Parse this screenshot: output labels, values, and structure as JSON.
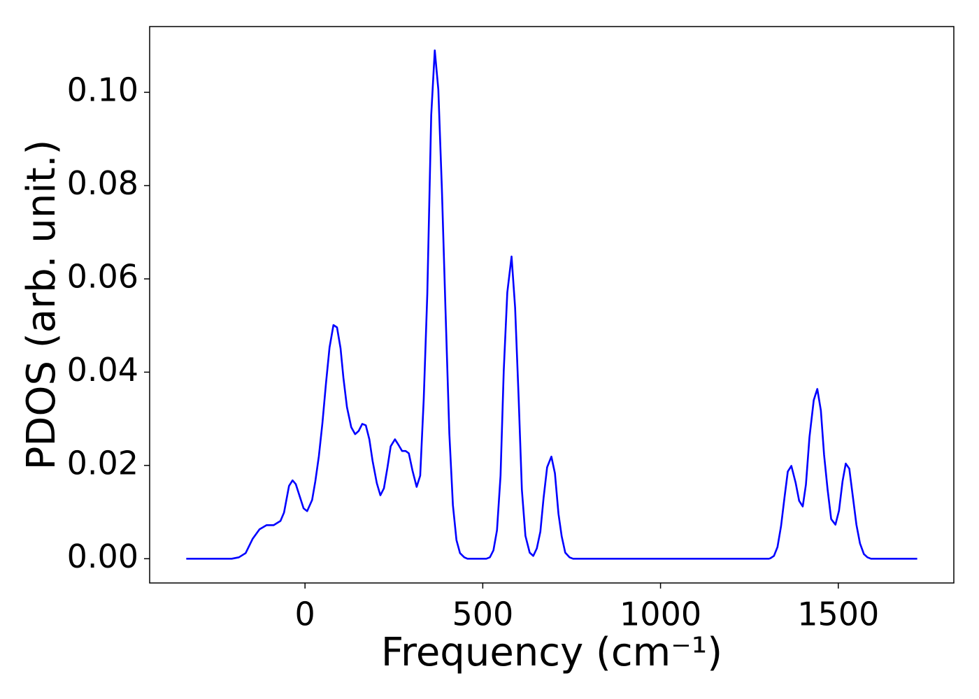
{
  "chart_data": {
    "type": "line",
    "xlabel": "Frequency (cm⁻¹)",
    "ylabel": "PDOS (arb. unit.)",
    "xlim": [
      -437,
      1825
    ],
    "ylim": [
      -0.0052,
      0.1141
    ],
    "xticks": [
      0,
      500,
      1000,
      1500
    ],
    "yticks": [
      {
        "value": 0,
        "label": "0.00"
      },
      0.02,
      0.04,
      0.06,
      0.08,
      {
        "value": 0.1,
        "label": "0.10"
      }
    ],
    "series": [
      {
        "color": "#0000ff",
        "x": [
          -334,
          -206,
          -186,
          -167,
          -147,
          -128,
          -108,
          -88,
          -69,
          -59,
          -45,
          -35,
          -26,
          -4,
          6,
          20,
          29,
          39,
          49,
          59,
          69,
          80,
          90,
          100,
          108,
          118,
          130,
          141,
          151,
          161,
          171,
          181,
          190,
          202,
          212,
          222,
          232,
          241,
          253,
          263,
          273,
          283,
          292,
          302,
          314,
          324,
          334,
          344,
          355,
          365,
          375,
          385,
          395,
          406,
          416,
          426,
          436,
          448,
          457,
          510,
          520,
          530,
          540,
          550,
          559,
          569,
          581,
          591,
          601,
          610,
          620,
          632,
          642,
          652,
          662,
          671,
          681,
          693,
          703,
          713,
          722,
          732,
          744,
          754,
          1305,
          1309,
          1319,
          1329,
          1339,
          1349,
          1358,
          1368,
          1380,
          1390,
          1400,
          1409,
          1419,
          1431,
          1441,
          1451,
          1460,
          1470,
          1480,
          1492,
          1502,
          1512,
          1521,
          1531,
          1541,
          1551,
          1561,
          1572,
          1582,
          1592,
          1722
        ],
        "values": [
          0,
          0,
          0.0003,
          0.0012,
          0.0043,
          0.0063,
          0.0072,
          0.0072,
          0.0081,
          0.0099,
          0.0156,
          0.0168,
          0.016,
          0.0108,
          0.0102,
          0.0126,
          0.0166,
          0.022,
          0.0291,
          0.0376,
          0.0453,
          0.0501,
          0.0496,
          0.0451,
          0.0388,
          0.0325,
          0.0282,
          0.0267,
          0.0274,
          0.0289,
          0.0286,
          0.0256,
          0.021,
          0.0162,
          0.0136,
          0.0151,
          0.0196,
          0.0241,
          0.0256,
          0.0244,
          0.0231,
          0.0231,
          0.0226,
          0.019,
          0.0154,
          0.0178,
          0.0343,
          0.0568,
          0.0951,
          0.109,
          0.1006,
          0.0793,
          0.0538,
          0.0268,
          0.0115,
          0.004,
          0.0012,
          0.0003,
          0,
          0,
          0.0003,
          0.0018,
          0.0061,
          0.0178,
          0.0403,
          0.0571,
          0.0648,
          0.0538,
          0.0343,
          0.0148,
          0.0049,
          0.0013,
          0.0006,
          0.0022,
          0.0058,
          0.013,
          0.0196,
          0.0219,
          0.0183,
          0.0096,
          0.0048,
          0.0013,
          0.0003,
          0,
          0,
          0.0001,
          0.0006,
          0.0025,
          0.007,
          0.0133,
          0.0187,
          0.0199,
          0.0163,
          0.0124,
          0.0112,
          0.0159,
          0.0261,
          0.034,
          0.0364,
          0.0318,
          0.0223,
          0.0148,
          0.0085,
          0.0073,
          0.0103,
          0.0166,
          0.0204,
          0.0193,
          0.0133,
          0.0073,
          0.0033,
          0.001,
          0.0003,
          0,
          0
        ]
      }
    ]
  }
}
